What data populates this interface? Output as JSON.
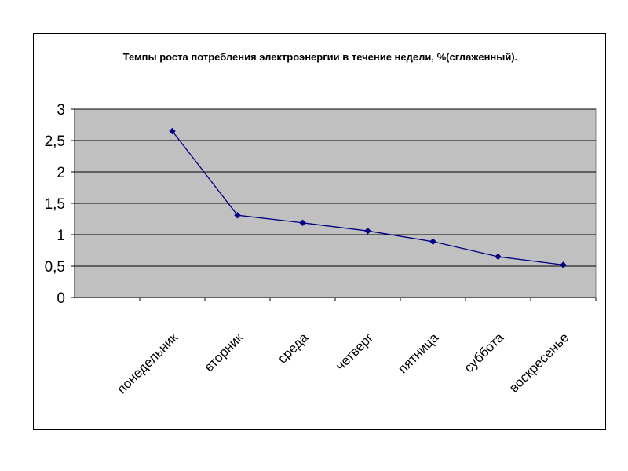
{
  "chart_data": {
    "type": "line",
    "title": "Темпы роста потребления электроэнергии в течение недели, %(сглаженный).",
    "xlabel": "",
    "ylabel": "",
    "categories": [
      "понедельник",
      "вторник",
      "среда",
      "четверг",
      "пятница",
      "суббота",
      "воскресенье"
    ],
    "series": [
      {
        "values": [
          2.65,
          1.31,
          1.19,
          1.06,
          0.89,
          0.65,
          0.52
        ]
      }
    ],
    "ylim": [
      0,
      3
    ],
    "yticks": [
      "0",
      "0,5",
      "1",
      "1,5",
      "2",
      "2,5",
      "3"
    ],
    "grid": true,
    "legend": "none",
    "colors": {
      "plot_background": "#c0c0c0",
      "line": "#000080",
      "gridline": "#000000"
    }
  }
}
